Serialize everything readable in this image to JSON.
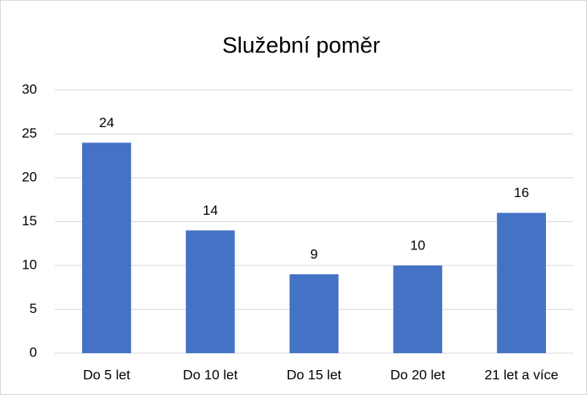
{
  "chart_data": {
    "type": "bar",
    "title": "Služební poměr",
    "categories": [
      "Do 5 let",
      "Do 10 let",
      "Do 15 let",
      "Do 20 let",
      "21 let a více"
    ],
    "values": [
      24,
      14,
      9,
      10,
      16
    ],
    "color": "#4472c4",
    "ylim": [
      0,
      30
    ],
    "yticks": [
      0,
      5,
      10,
      15,
      20,
      25,
      30
    ],
    "grid": true
  }
}
